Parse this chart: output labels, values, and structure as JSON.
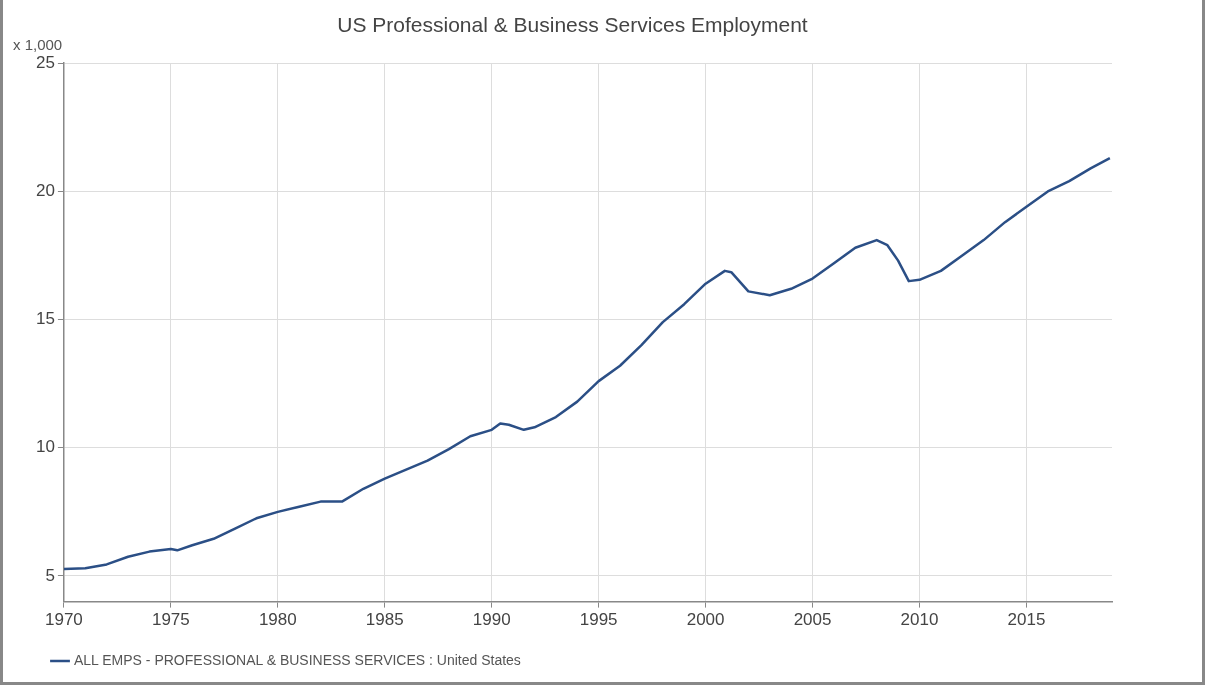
{
  "chart_data": {
    "type": "line",
    "title": "US Professional & Business Services Employment",
    "ylabel": "x 1,000",
    "x": [
      1970,
      1971,
      1972,
      1973,
      1974,
      1975,
      1975.3,
      1976,
      1977,
      1978,
      1979,
      1980,
      1981,
      1982,
      1983,
      1984,
      1985,
      1986,
      1987,
      1988,
      1989,
      1990,
      1990.4,
      1990.8,
      1991.5,
      1992,
      1993,
      1994,
      1995,
      1996,
      1997,
      1998,
      1999,
      2000,
      2000.9,
      2001.2,
      2002,
      2003,
      2004,
      2005,
      2006,
      2007,
      2008,
      2008.5,
      2009,
      2009.5,
      2010,
      2011,
      2012,
      2013,
      2014,
      2015,
      2016,
      2017,
      2018,
      2018.9
    ],
    "series": [
      {
        "name": "ALL EMPS - PROFESSIONAL & BUSINESS SERVICES : United States",
        "color": "#2b4f86",
        "values": [
          5.27,
          5.3,
          5.45,
          5.75,
          5.95,
          6.05,
          6.0,
          6.2,
          6.45,
          6.85,
          7.25,
          7.5,
          7.7,
          7.9,
          7.9,
          8.4,
          8.8,
          9.15,
          9.5,
          9.95,
          10.45,
          10.7,
          10.95,
          10.9,
          10.7,
          10.8,
          11.2,
          11.8,
          12.6,
          13.2,
          14.0,
          14.9,
          15.6,
          16.4,
          16.9,
          16.85,
          16.1,
          15.95,
          16.2,
          16.6,
          17.2,
          17.8,
          18.1,
          17.9,
          17.3,
          16.5,
          16.55,
          16.9,
          17.5,
          18.1,
          18.8,
          19.4,
          20.0,
          20.4,
          20.9,
          21.3
        ]
      }
    ],
    "xlim": [
      1970,
      2019
    ],
    "xticks": [
      1970,
      1975,
      1980,
      1985,
      1990,
      1995,
      2000,
      2005,
      2010,
      2015
    ],
    "ylim": [
      4,
      25
    ],
    "yticks": [
      5,
      10,
      15,
      20,
      25
    ],
    "grid": true,
    "legend": "bottom left",
    "marker": "none",
    "line_style": "solid"
  }
}
